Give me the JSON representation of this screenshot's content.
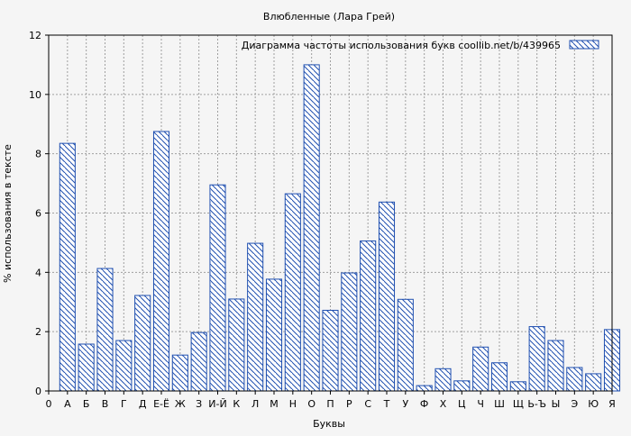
{
  "chart_data": {
    "type": "bar",
    "title": "Влюбленные (Лара Грей)",
    "xlabel": "Буквы",
    "ylabel": "% использования в тексте",
    "ylim": [
      0,
      12
    ],
    "yticks": [
      0,
      2,
      4,
      6,
      8,
      10,
      12
    ],
    "grid": true,
    "legend_position": "top-right",
    "x_tick_labels": [
      "0",
      "А",
      "Б",
      "В",
      "Г",
      "Д",
      "Е-Ё",
      "Ж",
      "З",
      "И-Й",
      "К",
      "Л",
      "М",
      "Н",
      "О",
      "П",
      "Р",
      "С",
      "Т",
      "У",
      "Ф",
      "Х",
      "Ц",
      "Ч",
      "Ш",
      "Щ",
      "Ь-Ъ",
      "Ы",
      "Э",
      "Ю",
      "Я"
    ],
    "categories": [
      "А",
      "Б",
      "В",
      "Г",
      "Д",
      "Е-Ё",
      "Ж",
      "З",
      "И-Й",
      "К",
      "Л",
      "М",
      "Н",
      "О",
      "П",
      "Р",
      "С",
      "Т",
      "У",
      "Ф",
      "Х",
      "Ц",
      "Ч",
      "Ш",
      "Щ",
      "Ь-Ъ",
      "Ы",
      "Э",
      "Ю",
      "Я"
    ],
    "series": [
      {
        "name": "Диаграмма частоты использования букв  coollib.net/b/439965",
        "values": [
          8.35,
          1.58,
          4.13,
          1.7,
          3.22,
          8.75,
          1.21,
          1.97,
          6.95,
          3.1,
          4.98,
          3.77,
          6.65,
          11.0,
          2.72,
          3.98,
          5.06,
          6.37,
          3.09,
          0.18,
          0.75,
          0.34,
          1.48,
          0.95,
          0.31,
          2.17,
          1.7,
          0.79,
          0.58,
          2.07
        ]
      }
    ],
    "colors": {
      "bar_stroke": "#1f4fb0",
      "bar_fill": "#ffffff",
      "grid": "#a0a0a0",
      "background": "#f5f5f5"
    }
  }
}
